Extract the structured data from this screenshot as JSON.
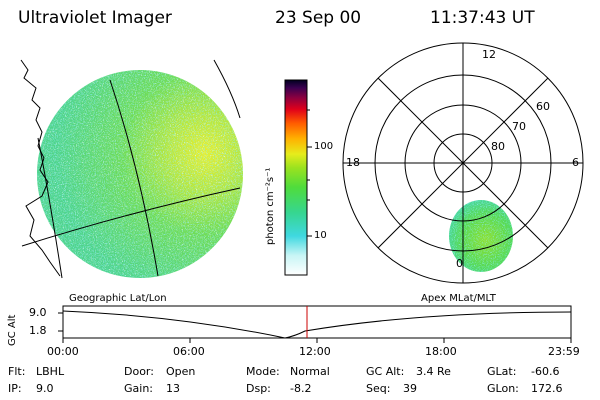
{
  "header": {
    "instrument": "Ultraviolet Imager",
    "date": "23 Sep 00",
    "time": "11:37:43 UT"
  },
  "colorbar": {
    "unit_label": "photon cm⁻²s⁻¹",
    "tick_labels": [
      "100",
      "10"
    ],
    "scale": "log"
  },
  "polar_plot": {
    "mlt_labels": {
      "top": "12",
      "left": "18",
      "right": "6",
      "bottom": "0"
    },
    "lat_labels": [
      "60",
      "70",
      "80"
    ]
  },
  "strip": {
    "left_title": "Geographic Lat/Lon",
    "right_title": "Apex MLat/MLT",
    "y_axis_label": "GC Alt",
    "y_ticks": [
      "9.0",
      "1.8"
    ],
    "x_ticks": [
      "00:00",
      "06:00",
      "12:00",
      "18:00",
      "23:59"
    ]
  },
  "footer": {
    "rows": [
      [
        {
          "key": "Flt:",
          "value": "LBHL"
        },
        {
          "key": "Door:",
          "value": "Open"
        },
        {
          "key": "Mode:",
          "value": "Normal"
        },
        {
          "key": "GC Alt:",
          "value": "3.4 Re"
        },
        {
          "key": "GLat:",
          "value": "-60.6"
        }
      ],
      [
        {
          "key": "IP:",
          "value": "9.0"
        },
        {
          "key": "Gain:",
          "value": "13"
        },
        {
          "key": "Dsp:",
          "value": "-8.2"
        },
        {
          "key": "Seq:",
          "value": "39"
        },
        {
          "key": "GLon:",
          "value": "172.6"
        }
      ]
    ]
  },
  "colors": {
    "background": "#ffffff",
    "foreground": "#000000",
    "marker": "#cc0000"
  }
}
